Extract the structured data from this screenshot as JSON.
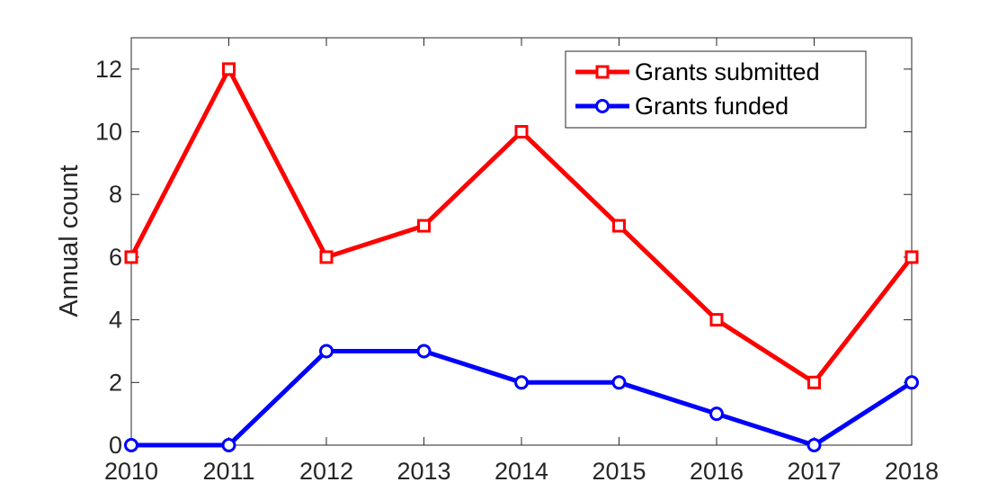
{
  "chart_data": {
    "type": "line",
    "title": "",
    "xlabel": "",
    "ylabel": "Annual count",
    "x": [
      2010,
      2011,
      2012,
      2013,
      2014,
      2015,
      2016,
      2017,
      2018
    ],
    "xlim": [
      2010,
      2018
    ],
    "ylim": [
      0,
      13
    ],
    "xticks": [
      "2010",
      "2011",
      "2012",
      "2013",
      "2014",
      "2015",
      "2016",
      "2017",
      "2018"
    ],
    "yticks": [
      "0",
      "2",
      "4",
      "6",
      "8",
      "10",
      "12"
    ],
    "grid": false,
    "legend_position": "top-right",
    "series": [
      {
        "name": "Grants submitted",
        "values": [
          6,
          12,
          6,
          7,
          10,
          7,
          4,
          2,
          6
        ],
        "color": "#ff0000",
        "marker": "square"
      },
      {
        "name": "Grants funded",
        "values": [
          0,
          0,
          3,
          3,
          2,
          2,
          1,
          0,
          2
        ],
        "color": "#0000ff",
        "marker": "circle"
      }
    ]
  }
}
